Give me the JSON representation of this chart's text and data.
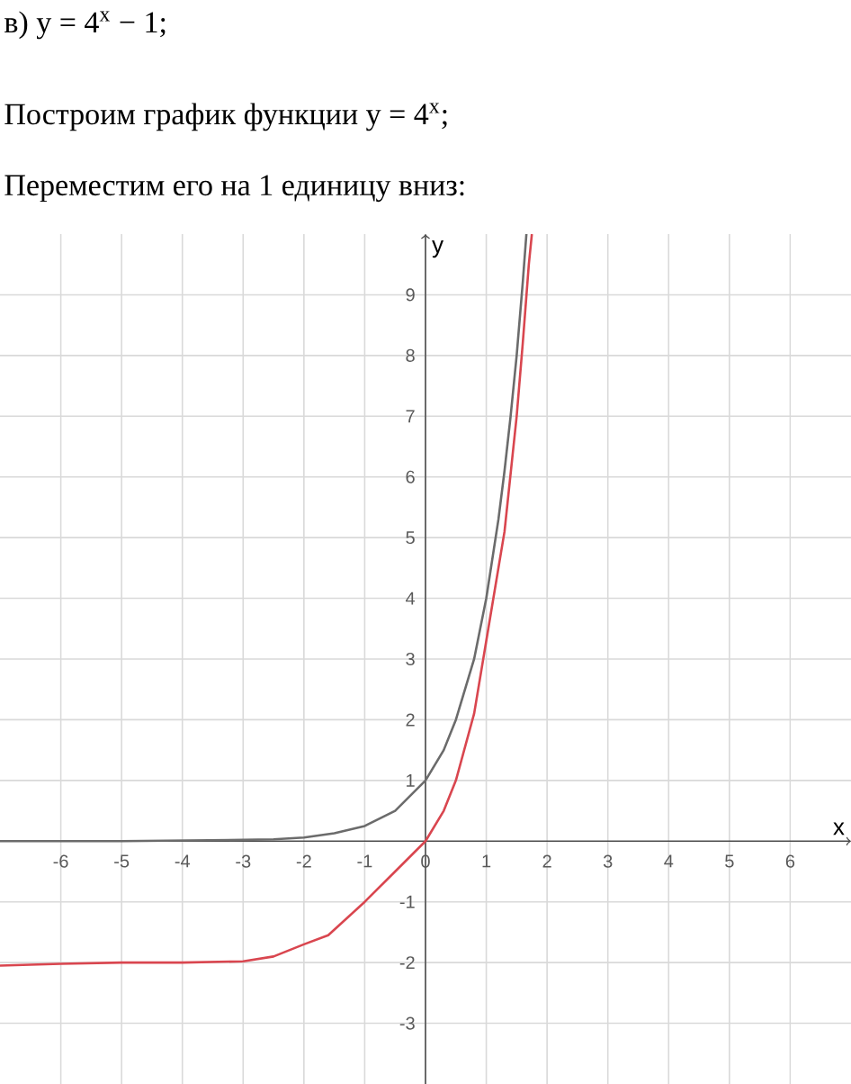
{
  "chart_data": {
    "type": "line",
    "title": "в) y = 4$^{x}$ − 1;",
    "subtitle": "Построим график функции y = 4$^{x}$;",
    "annotations": [
      "Переместим его на 1 единицу вниз:"
    ],
    "xlabel": "x",
    "ylabel": "y",
    "xlim": [
      -7,
      7
    ],
    "ylim": [
      -4,
      10
    ],
    "xticks": [
      -6,
      -5,
      -4,
      -3,
      -2,
      -1,
      0,
      1,
      2,
      3,
      4,
      5,
      6
    ],
    "yticks": [
      -3,
      -2,
      -1,
      1,
      2,
      3,
      4,
      5,
      6,
      7,
      8,
      9
    ],
    "grid": true,
    "marker": "none",
    "line_style": "solid",
    "series": [
      {
        "color": "#6b6b6b",
        "x": [
          -7,
          -6,
          -5,
          -4,
          -3,
          -2.5,
          -2,
          -1.5,
          -1,
          -0.5,
          0,
          0.3,
          0.5,
          0.8,
          1,
          1.2,
          1.3,
          1.4,
          1.5,
          1.6,
          1.66
        ],
        "values": [
          0,
          0,
          0,
          0.01,
          0.02,
          0.03,
          0.06,
          0.13,
          0.25,
          0.5,
          1,
          1.5,
          2,
          3,
          4,
          5.3,
          6.1,
          7,
          8,
          9.2,
          10
        ]
      },
      {
        "color": "#d9464f",
        "x": [
          -7,
          -6,
          -5,
          -4,
          -3,
          -2.5,
          -2,
          -1.6,
          -1,
          -0.5,
          0,
          0.3,
          0.5,
          0.8,
          0.95,
          1.1,
          1.3,
          1.5,
          1.6,
          1.7,
          1.75
        ],
        "values": [
          -2.05,
          -2.02,
          -2,
          -2,
          -1.98,
          -1.9,
          -1.7,
          -1.55,
          -1,
          -0.5,
          0,
          0.5,
          1,
          2.1,
          3,
          3.9,
          5.1,
          7,
          8.2,
          9.5,
          10
        ]
      }
    ]
  }
}
